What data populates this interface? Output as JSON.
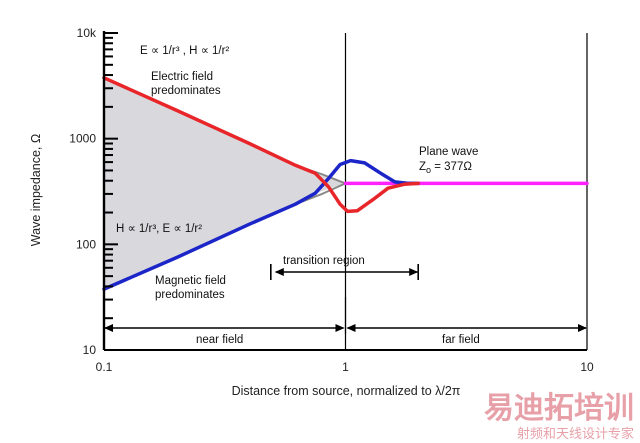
{
  "chart_data": {
    "type": "line",
    "xscale": "log",
    "yscale": "log",
    "xlim": [
      0.1,
      10
    ],
    "ylim": [
      10,
      10000
    ],
    "xlabel": "Distance from source, normalized to λ/2π",
    "ylabel": "Wave impedance, Ω",
    "x_ticks": [
      {
        "value": 0.1,
        "label": "0.1"
      },
      {
        "value": 1,
        "label": "1"
      },
      {
        "value": 10,
        "label": "10"
      }
    ],
    "y_ticks": [
      {
        "value": 10,
        "label": "10"
      },
      {
        "value": 100,
        "label": "100"
      },
      {
        "value": 1000,
        "label": "1000"
      },
      {
        "value": 10000,
        "label": "10k"
      }
    ],
    "series": [
      {
        "role": "electric",
        "color": "#e8262a",
        "points": [
          [
            0.1,
            3770
          ],
          [
            0.2,
            1850
          ],
          [
            0.4,
            900
          ],
          [
            0.62,
            560
          ],
          [
            0.75,
            470
          ],
          [
            0.85,
            350
          ],
          [
            0.95,
            240
          ],
          [
            1.02,
            205
          ],
          [
            1.12,
            208
          ],
          [
            1.3,
            265
          ],
          [
            1.5,
            340
          ],
          [
            1.75,
            370
          ],
          [
            2.0,
            377
          ]
        ]
      },
      {
        "role": "magnetic",
        "color": "#1c25c8",
        "points": [
          [
            0.1,
            37.7
          ],
          [
            0.2,
            75
          ],
          [
            0.4,
            155
          ],
          [
            0.62,
            240
          ],
          [
            0.75,
            305
          ],
          [
            0.85,
            420
          ],
          [
            0.95,
            570
          ],
          [
            1.05,
            620
          ],
          [
            1.2,
            590
          ],
          [
            1.4,
            470
          ],
          [
            1.6,
            390
          ],
          [
            1.8,
            378
          ],
          [
            2.0,
            377
          ]
        ]
      },
      {
        "role": "asymptote",
        "color": "#888888",
        "points": [
          [
            0.62,
            560
          ],
          [
            0.8,
            460
          ],
          [
            1.0,
            377
          ],
          [
            0.8,
            300
          ],
          [
            0.62,
            240
          ]
        ]
      },
      {
        "role": "plane-wave",
        "color": "#ff22ff",
        "points": [
          [
            1.0,
            377
          ],
          [
            10,
            377
          ]
        ]
      }
    ],
    "annotations": {
      "relation_top": "E ∝ 1/r³ , H ∝ 1/r²",
      "electric_line1": "Electric field",
      "electric_line2": "predominates",
      "plane_line1": "Plane wave",
      "plane_line2_prefix": "Z",
      "plane_line2_sub": "o",
      "plane_line2_suffix": " = 377Ω",
      "relation_bottom": "H ∝ 1/r³, E ∝ 1/r²",
      "magnetic_line1": "Magnetic field",
      "magnetic_line2": "predominates",
      "transition": "transition region",
      "near": "near field",
      "far": "far field"
    },
    "regions": {
      "transition_range": [
        0.5,
        2.0
      ],
      "near_range": [
        0.1,
        1.0
      ],
      "far_range": [
        1.0,
        10
      ]
    }
  },
  "watermark": {
    "brand": "易迪拓培训",
    "slogan": "射频和天线设计专家",
    "color": "#e8a0a8"
  }
}
